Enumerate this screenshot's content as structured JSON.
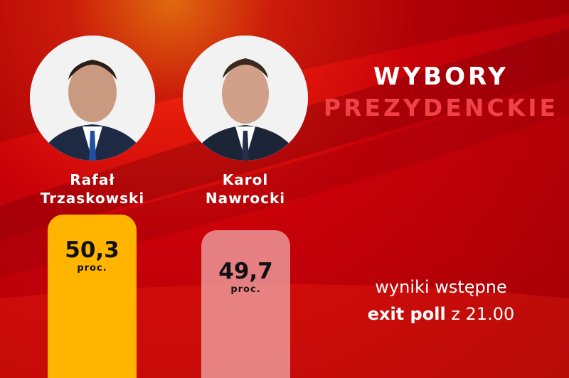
{
  "title": {
    "line1": "WYBORY",
    "line2": "PREZYDENCKIE"
  },
  "subtitle": {
    "line1": "wyniki wstępne",
    "bold": "exit poll",
    "rest": "z 21.00"
  },
  "colors": {
    "background": "#c80008",
    "bar_leader": "#ffb400",
    "bar_second": "#d98080",
    "title_accent": "#f04048"
  },
  "chart_data": {
    "type": "bar",
    "categories": [
      "Rafał Trzaskowski",
      "Karol Nawrocki"
    ],
    "values": [
      50.3,
      49.7
    ],
    "value_labels": [
      "50,3",
      "49,7"
    ],
    "unit": "proc.",
    "candidates": [
      {
        "first": "Rafał",
        "last": "Trzaskowski",
        "value_label": "50,3",
        "unit": "proc."
      },
      {
        "first": "Karol",
        "last": "Nawrocki",
        "value_label": "49,7",
        "unit": "proc."
      }
    ]
  }
}
